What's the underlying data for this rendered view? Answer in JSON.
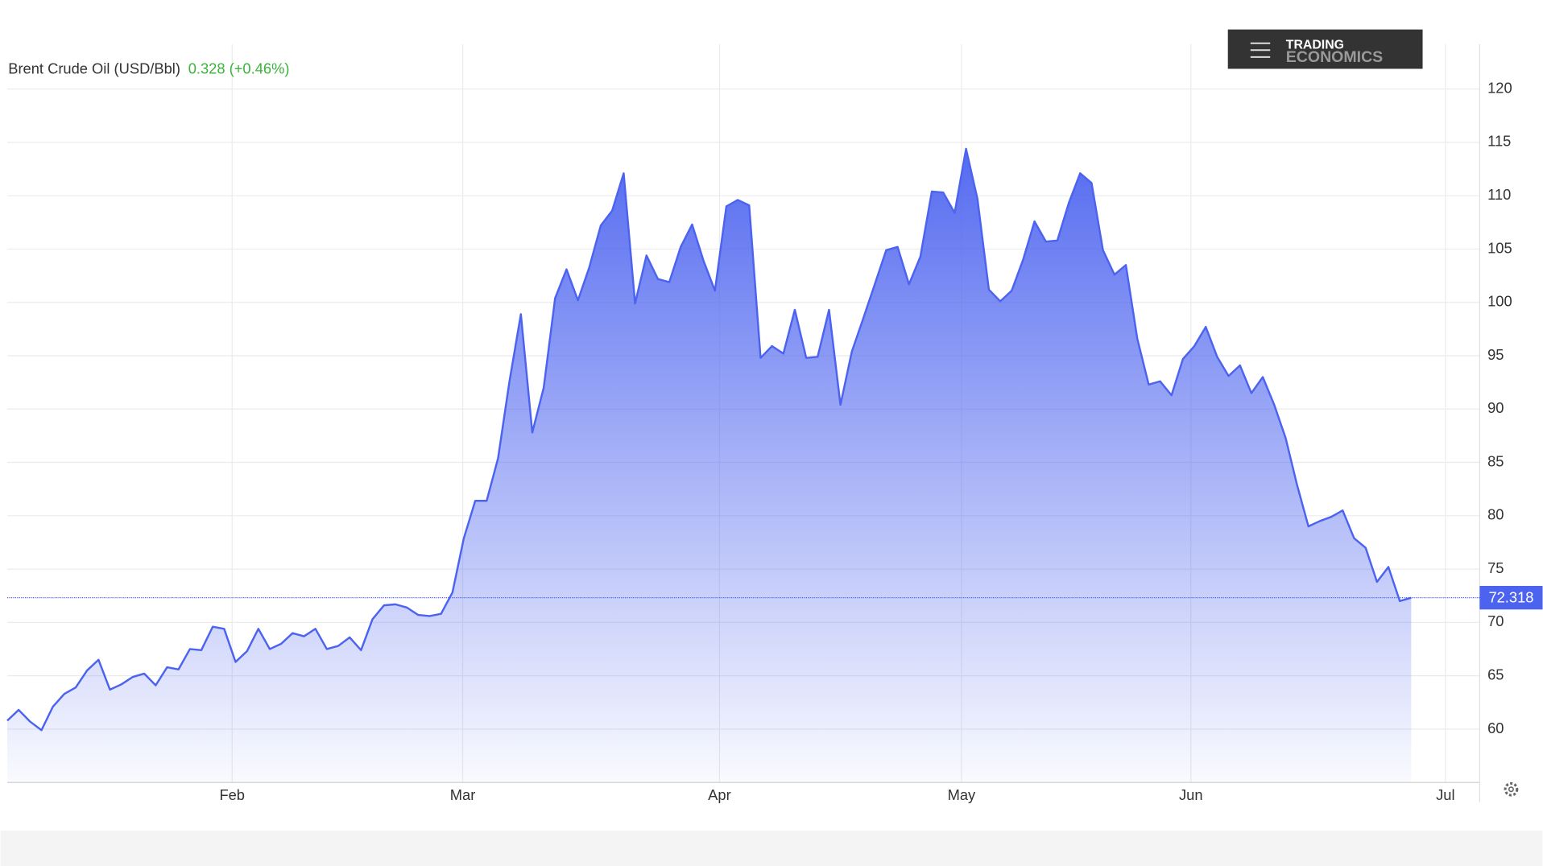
{
  "chart_data": {
    "type": "area",
    "title": "Brent Crude Oil (USD/Bbl)",
    "change": "0.328 (+0.46%)",
    "brand": [
      "TRADING",
      "ECONOMICS"
    ],
    "color": "#4c63ef",
    "values": [
      60.8,
      61.8,
      60.7,
      59.9,
      62.1,
      63.3,
      63.9,
      65.5,
      66.5,
      63.7,
      64.2,
      64.9,
      65.2,
      64.1,
      65.8,
      65.6,
      67.5,
      67.4,
      69.6,
      69.4,
      66.3,
      67.3,
      69.4,
      67.5,
      68.0,
      69.0,
      68.7,
      69.4,
      67.5,
      67.8,
      68.6,
      67.4,
      70.3,
      71.6,
      71.7,
      71.4,
      70.7,
      70.6,
      70.8,
      72.8,
      77.9,
      81.4,
      81.4,
      85.4,
      92.6,
      98.9,
      87.8,
      92.0,
      100.4,
      103.1,
      100.2,
      103.3,
      107.2,
      108.6,
      112.1,
      99.9,
      104.4,
      102.2,
      101.9,
      105.2,
      107.3,
      103.9,
      101.1,
      109.0,
      109.6,
      109.1,
      94.8,
      95.9,
      95.2,
      99.3,
      94.8,
      94.9,
      99.3,
      90.4,
      95.4,
      98.5,
      101.7,
      104.9,
      105.2,
      101.7,
      104.3,
      110.4,
      110.3,
      108.4,
      114.4,
      109.7,
      101.2,
      100.1,
      101.1,
      104.0,
      107.6,
      105.7,
      105.8,
      109.3,
      112.1,
      111.2,
      104.9,
      102.6,
      103.5,
      96.6,
      92.3,
      92.6,
      91.3,
      94.7,
      95.9,
      97.7,
      94.9,
      93.1,
      94.1,
      91.5,
      93.0,
      90.4,
      87.3,
      82.9,
      79.0,
      79.5,
      79.9,
      80.5,
      77.9,
      77.0,
      73.8,
      75.2,
      72.0,
      72.318
    ],
    "xlim": [
      0,
      129
    ],
    "xticks": [
      {
        "value": 19.7,
        "label": "Feb"
      },
      {
        "value": 39.9,
        "label": "Mar"
      },
      {
        "value": 62.4,
        "label": "Apr"
      },
      {
        "value": 83.6,
        "label": "May"
      },
      {
        "value": 103.7,
        "label": "Jun"
      },
      {
        "value": 126.0,
        "label": "Jul"
      }
    ],
    "ylim": [
      55,
      124.2
    ],
    "yticks": [
      60,
      65,
      70,
      75,
      80,
      85,
      90,
      95,
      100,
      105,
      110,
      115,
      120
    ],
    "grid": true
  }
}
